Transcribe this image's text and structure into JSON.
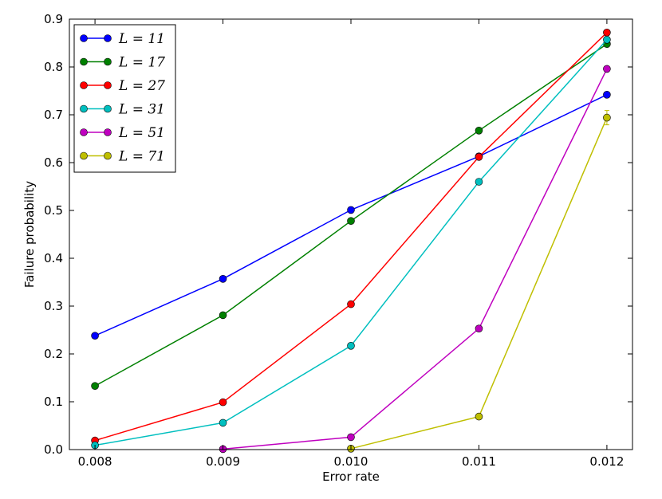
{
  "chart_data": {
    "type": "line",
    "xlabel": "Error rate",
    "ylabel": "Failure probability",
    "x": [
      0.008,
      0.009,
      0.01,
      0.011,
      0.012
    ],
    "x_tick_labels": [
      "0.008",
      "0.009",
      "0.010",
      "0.011",
      "0.012"
    ],
    "xlim": [
      0.0078,
      0.0122
    ],
    "ylim": [
      0.0,
      0.9
    ],
    "y_ticks": [
      0.0,
      0.1,
      0.2,
      0.3,
      0.4,
      0.5,
      0.6,
      0.7,
      0.8,
      0.9
    ],
    "y_tick_labels": [
      "0.0",
      "0.1",
      "0.2",
      "0.3",
      "0.4",
      "0.5",
      "0.6",
      "0.7",
      "0.8",
      "0.9"
    ],
    "grid": false,
    "legend_position": "top-left",
    "error_bars": true,
    "series": [
      {
        "name": "L = 11",
        "color": "#0000ff",
        "values": [
          0.238,
          0.357,
          0.501,
          0.613,
          0.742
        ],
        "errors": [
          0.004,
          0.005,
          0.006,
          0.006,
          0.005
        ]
      },
      {
        "name": "L = 17",
        "color": "#008000",
        "values": [
          0.133,
          0.281,
          0.478,
          0.667,
          0.848
        ],
        "errors": [
          0.003,
          0.004,
          0.005,
          0.005,
          0.004
        ]
      },
      {
        "name": "L = 27",
        "color": "#ff0000",
        "values": [
          0.019,
          0.099,
          0.304,
          0.612,
          0.872
        ],
        "errors": [
          0.002,
          0.003,
          0.004,
          0.006,
          0.004
        ]
      },
      {
        "name": "L = 31",
        "color": "#00bfbf",
        "values": [
          0.009,
          0.056,
          0.217,
          0.56,
          0.857
        ],
        "errors": [
          0.002,
          0.002,
          0.003,
          0.005,
          0.004
        ]
      },
      {
        "name": "L = 51",
        "color": "#bf00bf",
        "values": [
          null,
          0.001,
          0.026,
          0.253,
          0.796
        ],
        "errors": [
          null,
          0.001,
          0.002,
          0.004,
          0.005
        ]
      },
      {
        "name": "L = 71",
        "color": "#bfbf00",
        "values": [
          null,
          null,
          0.002,
          0.069,
          0.694
        ],
        "errors": [
          null,
          null,
          0.001,
          0.003,
          0.015
        ]
      }
    ]
  }
}
